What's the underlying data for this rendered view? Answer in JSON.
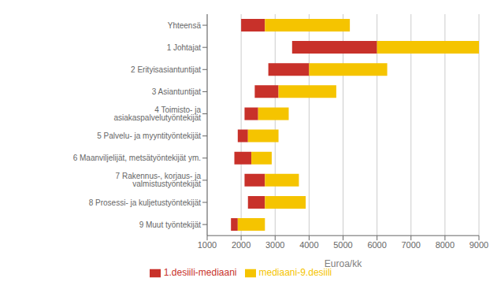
{
  "chart_data": {
    "type": "bar",
    "orientation": "horizontal",
    "categories": [
      "Yhteensä",
      "1 Johtajat",
      "2 Erityisasiantuntijat",
      "3 Asiantuntijat",
      "4 Toimisto- ja asiakaspalvelutyöntekijät",
      "5 Palvelu- ja myyntityöntekijät",
      "6 Maanviljelijät, metsätyöntekijät ym.",
      "7 Rakennus-, korjaus- ja valmistustyöntekijät",
      "8 Prosessi- ja kuljetustyöntekijät",
      "9 Muut työntekijät"
    ],
    "series": [
      {
        "name": "1.desiili-mediaani",
        "color": "#C8312A",
        "values": [
          [
            2000,
            2700
          ],
          [
            3500,
            6000
          ],
          [
            2800,
            4000
          ],
          [
            2400,
            3100
          ],
          [
            2100,
            2500
          ],
          [
            1900,
            2200
          ],
          [
            1800,
            2300
          ],
          [
            2100,
            2700
          ],
          [
            2200,
            2700
          ],
          [
            1700,
            1900
          ]
        ]
      },
      {
        "name": "mediaani-9.desiili",
        "color": "#F5C400",
        "values": [
          [
            2700,
            5200
          ],
          [
            6000,
            9000
          ],
          [
            4000,
            6300
          ],
          [
            3100,
            4800
          ],
          [
            2500,
            3400
          ],
          [
            2200,
            3100
          ],
          [
            2300,
            2900
          ],
          [
            2700,
            3700
          ],
          [
            2700,
            3900
          ],
          [
            1900,
            2700
          ]
        ]
      }
    ],
    "xlim": [
      1000,
      9000
    ],
    "xticks": [
      1000,
      2000,
      3000,
      4000,
      5000,
      6000,
      7000,
      8000,
      9000
    ],
    "xlabel": "Euroa/kk",
    "grid": true,
    "legend": "bottom"
  }
}
